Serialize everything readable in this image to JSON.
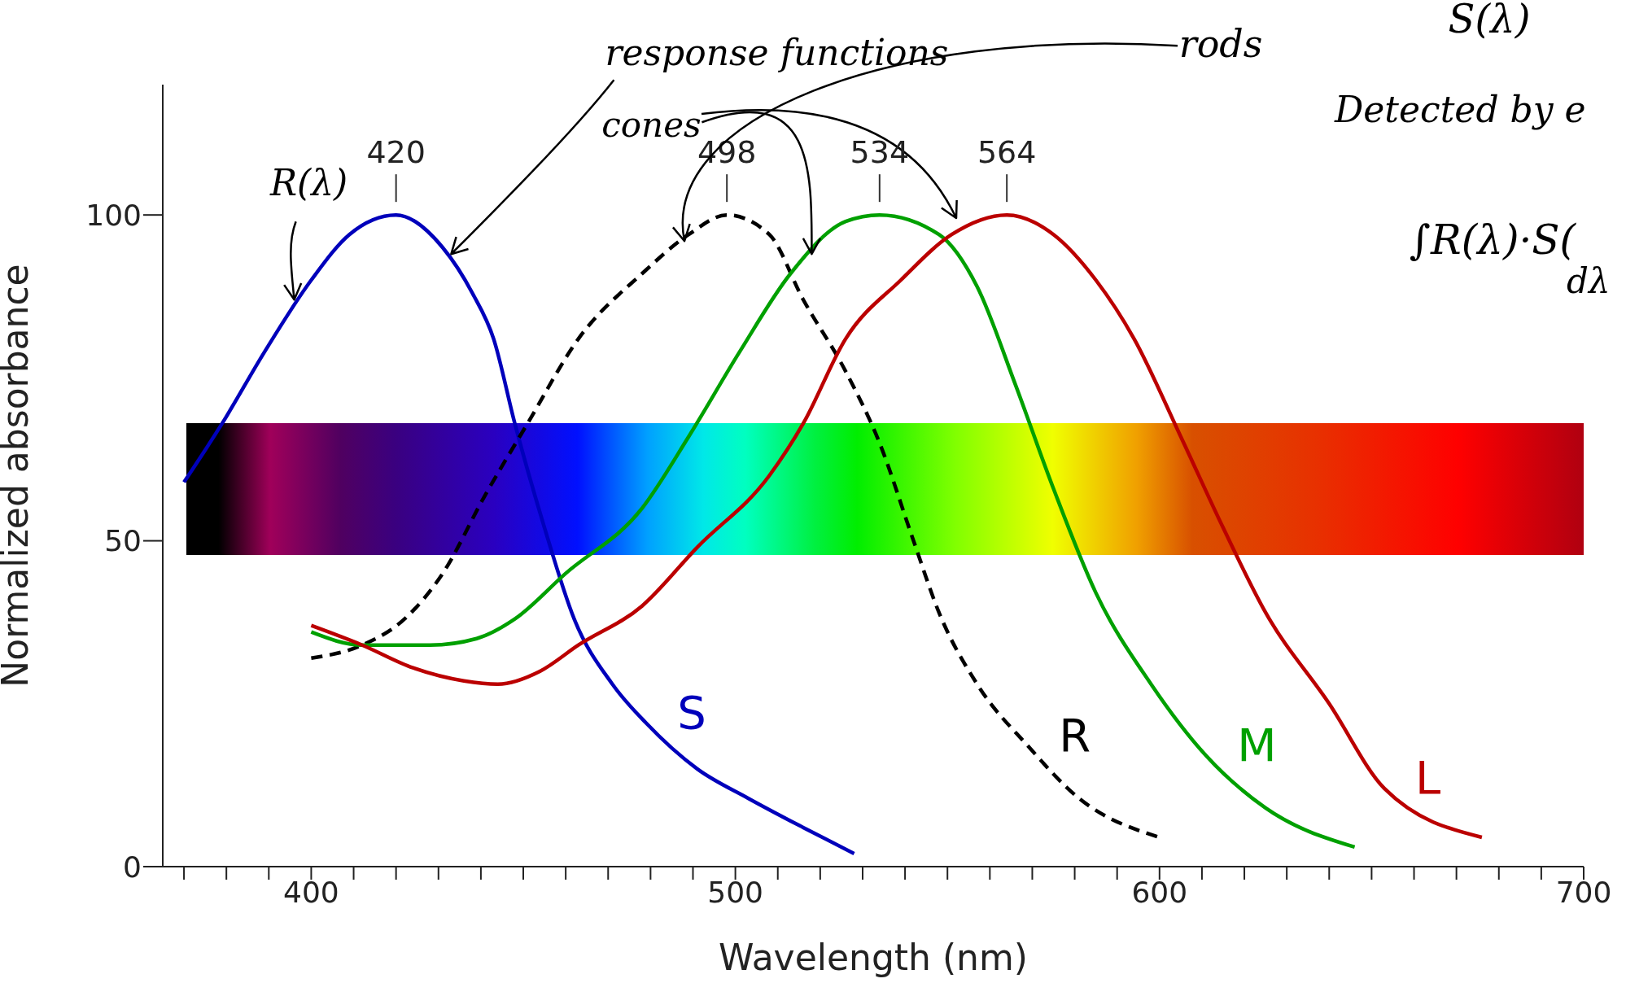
{
  "chart_data": {
    "type": "line",
    "xlabel": "Wavelength (nm)",
    "ylabel": "Normalized absorbance",
    "xlim": [
      365,
      700
    ],
    "xticks": [
      {
        "value": 370,
        "label": null
      },
      {
        "value": 380,
        "label": null
      },
      {
        "value": 390,
        "label": null
      },
      400,
      {
        "value": 410,
        "label": null
      },
      {
        "value": 420,
        "label": null
      },
      {
        "value": 430,
        "label": null
      },
      {
        "value": 440,
        "label": null
      },
      {
        "value": 450,
        "label": null
      },
      {
        "value": 460,
        "label": null
      },
      {
        "value": 470,
        "label": null
      },
      {
        "value": 480,
        "label": null
      },
      {
        "value": 490,
        "label": null
      },
      500,
      {
        "value": 510,
        "label": null
      },
      {
        "value": 520,
        "label": null
      },
      {
        "value": 530,
        "label": null
      },
      {
        "value": 540,
        "label": null
      },
      {
        "value": 550,
        "label": null
      },
      {
        "value": 560,
        "label": null
      },
      {
        "value": 570,
        "label": null
      },
      {
        "value": 580,
        "label": null
      },
      {
        "value": 590,
        "label": null
      },
      600,
      {
        "value": 610,
        "label": null
      },
      {
        "value": 620,
        "label": null
      },
      {
        "value": 630,
        "label": null
      },
      {
        "value": 640,
        "label": null
      },
      {
        "value": 650,
        "label": null
      },
      {
        "value": 660,
        "label": null
      },
      {
        "value": 670,
        "label": null
      },
      {
        "value": 680,
        "label": null
      },
      {
        "value": 690,
        "label": null
      },
      700
    ],
    "ylim": [
      0,
      120
    ],
    "yticks": [
      0,
      50,
      100
    ],
    "grid": false,
    "legend": false,
    "marker": "none",
    "series": [
      {
        "name": "S",
        "color": "#0000bb",
        "line_style": "solid",
        "x": [
          370,
          379,
          389,
          400,
          409,
          420,
          431,
          438,
          443,
          448,
          455,
          462,
          471,
          479,
          491,
          503,
          516,
          528
        ],
        "values": [
          59,
          68,
          79,
          90,
          97,
          100,
          95,
          88,
          81,
          68,
          52,
          38,
          28,
          22,
          15,
          10.5,
          6,
          2
        ]
      },
      {
        "name": "R",
        "color": "#000000",
        "line_style": "dashed",
        "x": [
          400,
          412,
          422,
          431,
          441,
          451,
          463,
          478,
          489,
          498,
          508,
          516,
          526,
          534,
          542,
          548,
          557,
          569,
          581,
          600
        ],
        "values": [
          32,
          34,
          38,
          45,
          57,
          68,
          81,
          91,
          97,
          100,
          97,
          87,
          76,
          65,
          50,
          39,
          28,
          18.5,
          10.5,
          4.5
        ]
      },
      {
        "name": "M",
        "color": "#00a000",
        "line_style": "solid",
        "x": [
          400,
          412,
          428,
          439,
          448,
          460,
          478,
          489,
          501,
          513,
          526,
          534,
          548,
          557,
          566,
          575,
          585,
          598,
          611,
          625,
          646
        ],
        "values": [
          36,
          34,
          34,
          35,
          38,
          45,
          55,
          66,
          79,
          91,
          99,
          100,
          97,
          89,
          74,
          58,
          42,
          28,
          17,
          9,
          3
        ]
      },
      {
        "name": "L",
        "color": "#bb0000",
        "line_style": "solid",
        "x": [
          400,
          412,
          424,
          436,
          444,
          454,
          463,
          478,
          491,
          508,
          516,
          526,
          539,
          551,
          564,
          575,
          585,
          594,
          605,
          615,
          625,
          640,
          653,
          676
        ],
        "values": [
          37,
          34,
          30.5,
          28.5,
          28,
          30,
          34,
          40,
          49,
          60,
          68,
          81,
          90,
          97,
          100,
          97,
          90,
          81,
          66,
          52,
          39,
          25,
          12,
          4.5
        ]
      }
    ],
    "annotations": [
      {
        "text": "420",
        "x": 420,
        "y": 100
      },
      {
        "text": "498",
        "x": 498,
        "y": 100
      },
      {
        "text": "534",
        "x": 534,
        "y": 100
      },
      {
        "text": "564",
        "x": 564,
        "y": 100
      },
      {
        "text": "response functions",
        "x": 433,
        "y": 94
      },
      {
        "text": "rods",
        "x": 488,
        "y": 96
      },
      {
        "text": "R(λ)",
        "x": 396,
        "y": 87
      },
      {
        "text": "cones",
        "x": 518,
        "y": 94
      },
      "S(λ)",
      "Detected by e",
      "∫R(λ)·S(",
      "dλ"
    ]
  }
}
